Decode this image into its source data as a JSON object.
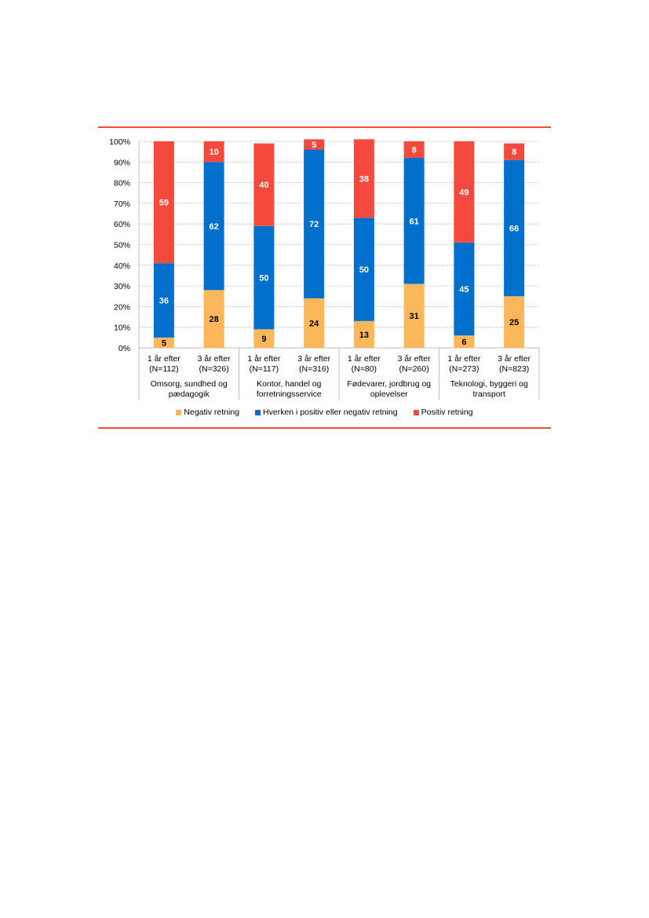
{
  "colors": {
    "negative": "#FBB75A",
    "neither": "#0070CC",
    "positive": "#F5493D",
    "rule": "#F04E37",
    "grid": "#B8B8B8"
  },
  "chart_data": {
    "type": "bar",
    "stacked": true,
    "ylim": [
      0,
      100
    ],
    "y_ticks": [
      "0%",
      "10%",
      "20%",
      "30%",
      "40%",
      "50%",
      "60%",
      "70%",
      "80%",
      "90%",
      "100%"
    ],
    "grid": true,
    "legend_position": "bottom",
    "groups": [
      {
        "label": [
          "Omsorg, sundhed og",
          "pædagogik"
        ],
        "categories": [
          [
            "1 år efter",
            "(N=112)"
          ],
          [
            "3 år efter",
            "(N=326)"
          ]
        ]
      },
      {
        "label": [
          "Kontor, handel og",
          "forretningsservice"
        ],
        "categories": [
          [
            "1 år efter",
            "(N=117)"
          ],
          [
            "3 år efter",
            "(N=316)"
          ]
        ]
      },
      {
        "label": [
          "Fødevarer, jordbrug og",
          "oplevelser"
        ],
        "categories": [
          [
            "1 år efter",
            "(N=80)"
          ],
          [
            "3 år efter",
            "(N=260)"
          ]
        ]
      },
      {
        "label": [
          "Teknologi, byggeri og",
          "transport"
        ],
        "categories": [
          [
            "1 år efter",
            "(N=273)"
          ],
          [
            "3 år efter",
            "(N=823)"
          ]
        ]
      }
    ],
    "series": [
      {
        "name": "Negativ retning",
        "values": [
          5,
          28,
          9,
          24,
          13,
          31,
          6,
          25
        ]
      },
      {
        "name": "Hverken i positiv eller negativ retning",
        "values": [
          36,
          62,
          50,
          72,
          50,
          61,
          45,
          66
        ]
      },
      {
        "name": "Positiv retning",
        "values": [
          59,
          10,
          40,
          5,
          38,
          8,
          49,
          8
        ]
      }
    ]
  }
}
